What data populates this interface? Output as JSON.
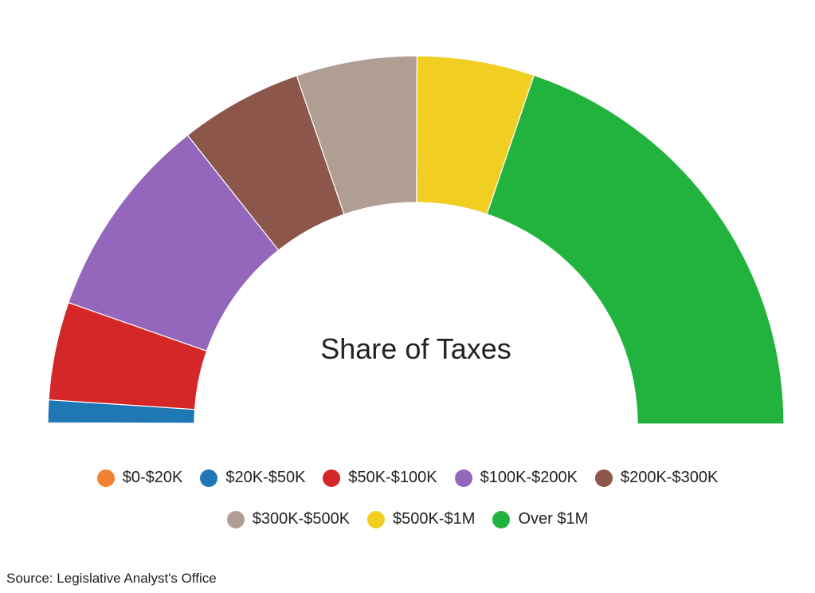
{
  "chart_data": {
    "type": "pie",
    "subtype": "half-donut",
    "title": "Share of Taxes",
    "categories": [
      "$0-$20K",
      "$20K-$50K",
      "$50K-$100K",
      "$100K-$200K",
      "$200K-$300K",
      "$300K-$500K",
      "$500K-$1M",
      "Over $1M"
    ],
    "values": [
      0.1,
      2.0,
      8.6,
      18.0,
      10.8,
      10.6,
      10.3,
      39.6
    ],
    "colors": [
      "#f28131",
      "#1f77b4",
      "#d62728",
      "#9467bd",
      "#8c564b",
      "#b09e93",
      "#f0cf22",
      "#22b33f"
    ],
    "legend_placement": "bottom"
  },
  "source": "Source: Legislative Analyst's Office"
}
